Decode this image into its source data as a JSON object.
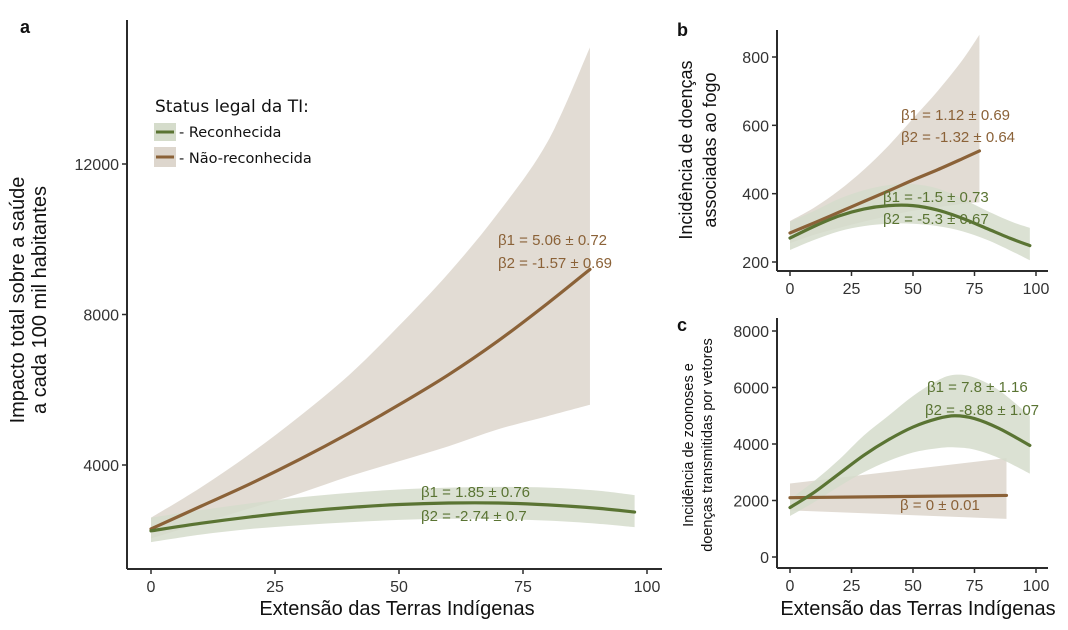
{
  "colors": {
    "green_line": "#5a7433",
    "green_band": "#d5dccb",
    "brown_line": "#8b6238",
    "brown_band": "#ddd6cd"
  },
  "legend": {
    "title": "Status legal da TI:",
    "items": [
      {
        "label": "- Reconhecida",
        "series": "green"
      },
      {
        "label": "- Não-reconhecida",
        "series": "brown"
      }
    ]
  },
  "chart_data": [
    {
      "panel": "a",
      "type": "line",
      "xlabel": "Extensão das Terras Indígenas",
      "ylabel_lines": [
        "Impacto total sobre a saúde",
        "a cada 100 mil habitantes"
      ],
      "xlim": [
        -5,
        103
      ],
      "ylim": [
        1200,
        15500
      ],
      "xticks": [
        0,
        25,
        50,
        75,
        100
      ],
      "yticks": [
        4000,
        8000,
        12000
      ],
      "legend_position": "top-left",
      "series": [
        {
          "name": "Não-reconhecida",
          "color_key": "brown",
          "x": [
            0,
            10,
            20,
            30,
            40,
            50,
            60,
            70,
            80,
            88.5
          ],
          "y": [
            2300,
            2900,
            3500,
            4150,
            4850,
            5600,
            6400,
            7300,
            8300,
            9200
          ],
          "lower": [
            2050,
            2450,
            2850,
            3250,
            3700,
            4100,
            4500,
            4950,
            5300,
            5600
          ],
          "upper": [
            2600,
            3400,
            4300,
            5300,
            6400,
            7700,
            9100,
            10700,
            12600,
            15100
          ],
          "annotations": [
            "β1 = 5.06 ± 0.72",
            "β2 = -1.57 ± 0.69"
          ]
        },
        {
          "name": "Reconhecida",
          "color_key": "green",
          "x": [
            0,
            10,
            20,
            30,
            40,
            50,
            60,
            70,
            80,
            90,
            97.5
          ],
          "y": [
            2250,
            2450,
            2620,
            2760,
            2870,
            2950,
            2990,
            2990,
            2940,
            2850,
            2750
          ],
          "lower": [
            1950,
            2150,
            2300,
            2400,
            2480,
            2540,
            2570,
            2560,
            2520,
            2440,
            2350
          ],
          "upper": [
            2600,
            2800,
            2980,
            3140,
            3260,
            3350,
            3400,
            3420,
            3400,
            3320,
            3200
          ],
          "annotations": [
            "β1 = 1.85 ± 0.76",
            "β2 = -2.74 ± 0.7"
          ]
        }
      ]
    },
    {
      "panel": "b",
      "type": "line",
      "xlabel": "",
      "ylabel_lines": [
        "Incidência de doenças",
        "associadas ao fogo"
      ],
      "xlim": [
        -5,
        103
      ],
      "ylim": [
        175,
        905
      ],
      "xticks": [
        0,
        25,
        50,
        75,
        100
      ],
      "yticks": [
        200,
        400,
        600,
        800
      ],
      "series": [
        {
          "name": "Não-reconhecida",
          "color_key": "brown",
          "x": [
            0,
            10,
            20,
            30,
            40,
            50,
            60,
            70,
            77
          ],
          "y": [
            285,
            315,
            346,
            377,
            408,
            440,
            470,
            502,
            525
          ],
          "lower": [
            255,
            280,
            300,
            318,
            335,
            350,
            360,
            370,
            375
          ],
          "upper": [
            320,
            360,
            410,
            470,
            540,
            620,
            700,
            790,
            865
          ],
          "annotations": [
            "β1 = 1.12 ± 0.69",
            "β2 = -1.32 ± 0.64"
          ]
        },
        {
          "name": "Reconhecida",
          "color_key": "green",
          "x": [
            0,
            10,
            20,
            30,
            40,
            50,
            60,
            70,
            80,
            90,
            97.5
          ],
          "y": [
            270,
            305,
            335,
            355,
            365,
            365,
            352,
            328,
            298,
            268,
            248
          ],
          "lower": [
            235,
            265,
            290,
            305,
            312,
            312,
            305,
            290,
            265,
            232,
            205
          ],
          "upper": [
            318,
            350,
            385,
            410,
            425,
            428,
            415,
            385,
            350,
            318,
            300
          ],
          "annotations": [
            "β1 = -1.5 ± 0.73",
            "β2 = -5.3 ± 0.67"
          ]
        }
      ]
    },
    {
      "panel": "c",
      "type": "line",
      "xlabel": "Extensão das Terras Indígenas",
      "ylabel_lines": [
        "Incidência de zoonoses e",
        "doenças transmitidas por vetores"
      ],
      "xlim": [
        -5,
        103
      ],
      "ylim": [
        -400,
        8400
      ],
      "xticks": [
        0,
        25,
        50,
        75,
        100
      ],
      "yticks": [
        0,
        2000,
        4000,
        6000,
        8000
      ],
      "series": [
        {
          "name": "Não-reconhecida",
          "color_key": "brown",
          "x": [
            0,
            88
          ],
          "y": [
            2100,
            2180
          ],
          "lower": [
            1650,
            1350
          ],
          "upper": [
            2600,
            3500
          ],
          "annotations": [
            "β = 0 ± 0.01"
          ]
        },
        {
          "name": "Reconhecida",
          "color_key": "green",
          "x": [
            0,
            10,
            20,
            30,
            40,
            50,
            60,
            67,
            75,
            85,
            97.5
          ],
          "y": [
            1750,
            2300,
            2950,
            3600,
            4150,
            4600,
            4900,
            5000,
            4900,
            4550,
            3950
          ],
          "lower": [
            1450,
            1950,
            2500,
            3000,
            3400,
            3700,
            3850,
            3880,
            3800,
            3500,
            2950
          ],
          "upper": [
            2050,
            2700,
            3450,
            4300,
            5000,
            5700,
            6250,
            6450,
            6350,
            5900,
            5000
          ],
          "annotations": [
            "β1 = 7.8 ± 1.16",
            "β2 = -8.88 ± 1.07"
          ]
        }
      ]
    }
  ]
}
